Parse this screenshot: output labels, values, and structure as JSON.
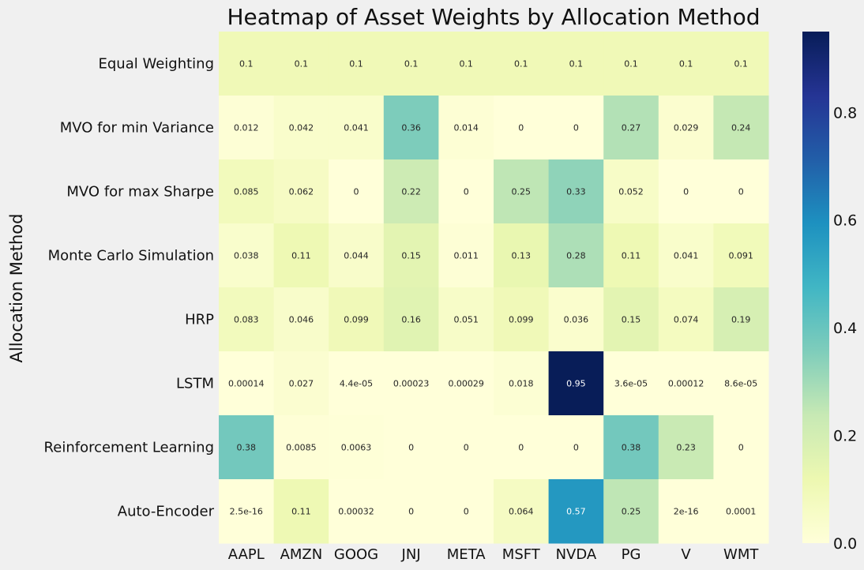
{
  "chart_data": {
    "type": "heatmap",
    "title": "Heatmap of Asset Weights by Allocation Method",
    "xlabel": "",
    "ylabel": "Allocation Method",
    "columns": [
      "AAPL",
      "AMZN",
      "GOOG",
      "JNJ",
      "META",
      "MSFT",
      "NVDA",
      "PG",
      "V",
      "WMT"
    ],
    "rows": [
      "Equal Weighting",
      "MVO for min Variance",
      "MVO for max Sharpe",
      "Monte Carlo Simulation",
      "HRP",
      "LSTM",
      "Reinforcement Learning",
      "Auto-Encoder"
    ],
    "values": [
      [
        0.1,
        0.1,
        0.1,
        0.1,
        0.1,
        0.1,
        0.1,
        0.1,
        0.1,
        0.1
      ],
      [
        0.012,
        0.042,
        0.041,
        0.36,
        0.014,
        0,
        0,
        0.27,
        0.029,
        0.24
      ],
      [
        0.085,
        0.062,
        0,
        0.22,
        0,
        0.25,
        0.33,
        0.052,
        0,
        0
      ],
      [
        0.038,
        0.11,
        0.044,
        0.15,
        0.011,
        0.13,
        0.28,
        0.11,
        0.041,
        0.091
      ],
      [
        0.083,
        0.046,
        0.099,
        0.16,
        0.051,
        0.099,
        0.036,
        0.15,
        0.074,
        0.19
      ],
      [
        0.00014,
        0.027,
        4.4e-05,
        0.00023,
        0.00029,
        0.018,
        0.95,
        3.6e-05,
        0.00012,
        8.6e-05
      ],
      [
        0.38,
        0.0085,
        0.0063,
        0,
        0,
        0,
        0,
        0.38,
        0.23,
        0
      ],
      [
        2.5e-16,
        0.11,
        0.00032,
        0,
        0,
        0.064,
        0.57,
        0.25,
        2e-16,
        0.0001
      ]
    ],
    "value_labels": [
      [
        "0.1",
        "0.1",
        "0.1",
        "0.1",
        "0.1",
        "0.1",
        "0.1",
        "0.1",
        "0.1",
        "0.1"
      ],
      [
        "0.012",
        "0.042",
        "0.041",
        "0.36",
        "0.014",
        "0",
        "0",
        "0.27",
        "0.029",
        "0.24"
      ],
      [
        "0.085",
        "0.062",
        "0",
        "0.22",
        "0",
        "0.25",
        "0.33",
        "0.052",
        "0",
        "0"
      ],
      [
        "0.038",
        "0.11",
        "0.044",
        "0.15",
        "0.011",
        "0.13",
        "0.28",
        "0.11",
        "0.041",
        "0.091"
      ],
      [
        "0.083",
        "0.046",
        "0.099",
        "0.16",
        "0.051",
        "0.099",
        "0.036",
        "0.15",
        "0.074",
        "0.19"
      ],
      [
        "0.00014",
        "0.027",
        "4.4e-05",
        "0.00023",
        "0.00029",
        "0.018",
        "0.95",
        "3.6e-05",
        "0.00012",
        "8.6e-05"
      ],
      [
        "0.38",
        "0.0085",
        "0.0063",
        "0",
        "0",
        "0",
        "0",
        "0.38",
        "0.23",
        "0"
      ],
      [
        "2.5e-16",
        "0.11",
        "0.00032",
        "0",
        "0",
        "0.064",
        "0.57",
        "0.25",
        "2e-16",
        "0.0001"
      ]
    ],
    "colormap": "YlGnBu",
    "color_range": [
      0,
      0.95
    ],
    "colorbar_ticks": [
      "0.0",
      "0.2",
      "0.4",
      "0.6",
      "0.8"
    ],
    "grid": false
  }
}
